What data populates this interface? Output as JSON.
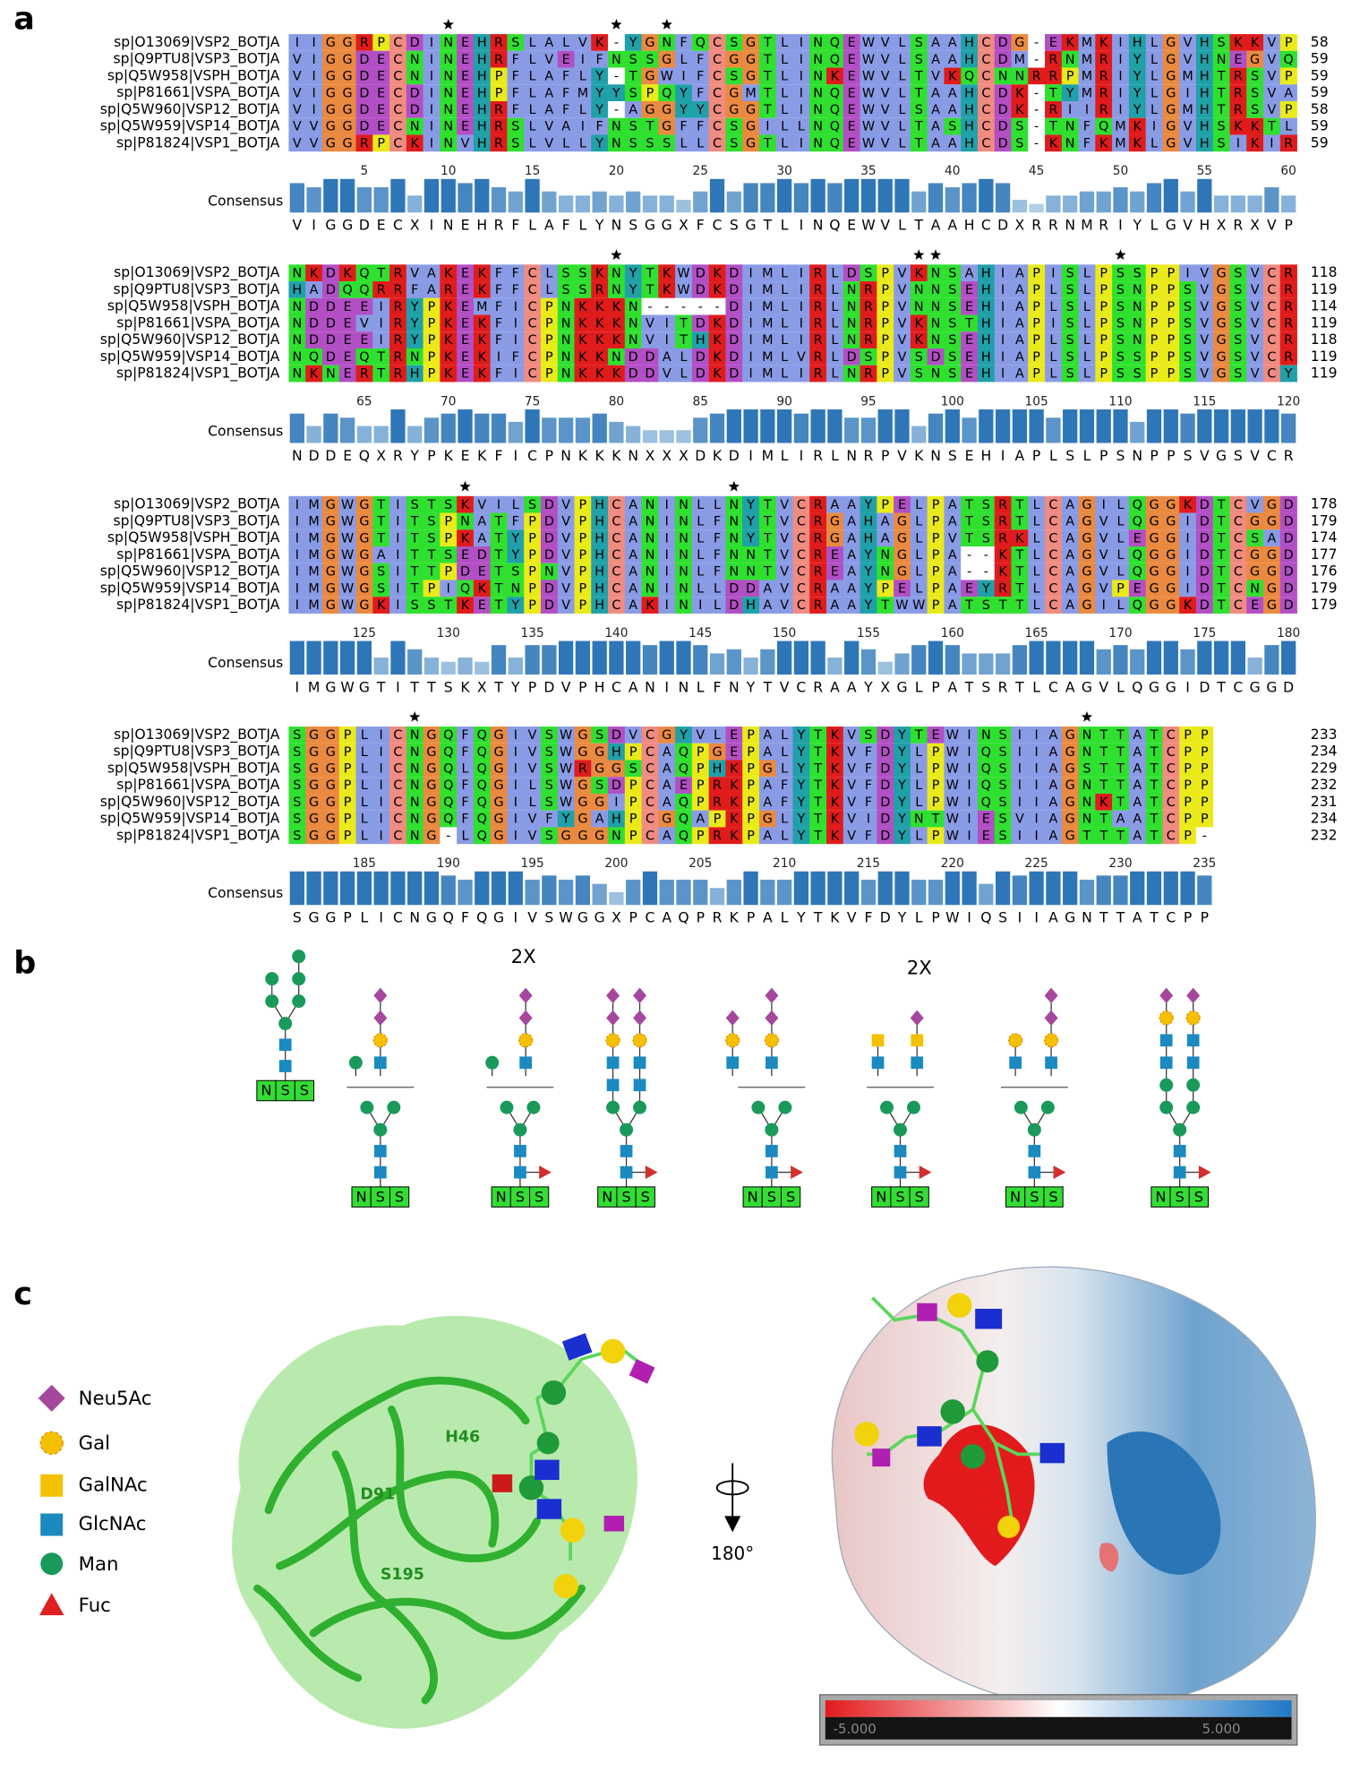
{
  "panel_labels": [
    "a",
    "b",
    "c"
  ],
  "alignment": {
    "names": [
      "sp|O13069|VSP2_BOTJA",
      "sp|Q9PTU8|VSP3_BOTJA",
      "sp|Q5W958|VSPH_BOTJA",
      "sp|P81661|VSPA_BOTJA",
      "sp|Q5W960|VSP12_BOTJA",
      "sp|Q5W959|VSP14_BOTJA",
      "sp|P81824|VSP1_BOTJA"
    ],
    "consensus_label": "Consensus",
    "blocks": [
      {
        "sequences": [
          "IIGGRPCDINEHRSLALVK-YGNFQCSGTLINQEWVLSAAHCDG-EKMKIHLGVHSKKVP",
          "VIGGDECNINEHRFLVEIFNSSGLFCGGTLINQEWVLSAAHCDM-RNMRIYLGVHNEGVQ",
          "VIGGDECNINEHPFLAFLY-TGWIFCSGTLINKEWVLTVKQCNNRRPMRIYLGMHTRSVP",
          "VIGGDECDINEHPFLAFMYYSPQYFCGMTLINQEWVLTAAHCDK-TYMRIYLGIHTRSVA",
          "VIGGDECDINEHRFLAFLY-AGGYYCGGTLINQEWVLSAAHCDK-RIIRIYLGMHTRSVP",
          "VVGGDECNINEHRSLVAIFNSTGFFCSGILLNQEWVLTASHCDS-TNFQMKIGVHSKKTL",
          "VVGGRPCKINVHRSLVLLYNSSSLLCSGTLINQEWVLTAAHCDS-KNFKMKLGVHSIKIR"
        ],
        "end_numbers": [
          58,
          59,
          59,
          59,
          58,
          59,
          59
        ],
        "ruler": [
          5,
          10,
          15,
          20,
          25,
          30,
          35,
          40,
          45,
          50,
          55,
          60
        ],
        "stars": [
          10,
          20,
          23
        ],
        "consensus": "VIGGDECXINEHRFLAFLYNSGGXFCSGTLINQEWVLTAAHCDXRRNMRIYLGVHXRXVP"
      },
      {
        "sequences": [
          "NKDKQTRVAKEKFFCLSSKNYTKWDKDIMLIRLDSPVKNSAHIAPISLPSSPPIVGSVCR",
          "HADQQRRFAREKFFCLSSRNYTKWDKDIMLIRLNRPVNNSEHIAPLSLPSNPPSVGSVCR",
          "NDDEEIRYPKEMFICPNKKKN-----DIMLIRLNRPVNNSEHIAPLSLPSNPPSVGSVCR",
          "NDDEVIRYPKEKFICPNKKKNVITDKDIMLIRLNRPVKNSTHIAPISLPSNPPSVGSVCR",
          "NDDEEIRYPKEKFICPNKKKNVITHKDIMLIRLNRPVKNSEHIAPLSLPSNPPSVGSVCR",
          "NQDEQTRNPKEKIFCPNKKNDDALDKDIMLVRLDSPVSDSEHIAPLSLPSSPPSVGSVCR",
          "NKNERTRHPKEKFICPNKKKDDVLDKDIMLIRLNRPVSNSEHIAPLSLPSSPPSVGSVCY"
        ],
        "end_numbers": [
          118,
          119,
          114,
          119,
          118,
          119,
          119
        ],
        "ruler": [
          65,
          70,
          75,
          80,
          85,
          90,
          95,
          100,
          105,
          110,
          115,
          120
        ],
        "stars": [
          80,
          98,
          99,
          110
        ],
        "consensus": "NDDEQXRYPKEKFICPNKKKNXXXDKDIMLIRLNRPVKNSEHIAPLSLPSNPPSVGSVCR"
      },
      {
        "sequences": [
          "IMGWGTISTSKVILSDVPHCANINLLNYTVCRAAYPELPATSRTLCAGILQGGKDTCVGD",
          "IMGWGTITSPNATFPDVPHCANINLFNYTVCRGAHAGLPATSRTLCAGVLQGGIDTCGGD",
          "IMGWGTITSPKATYPDVPHCANINLFNYTVCRGAHAGLPVTSRKLCAGVLEGGIDTCSAD",
          "IMGWGAITTSEDTYPDVPHCANINLFNNTVCREAYNGLPA--KTLCAGVLQGGIDTCGGD",
          "IMGWGSITTPDETSPNVPHCANINLFNNTVCREAYNGLPA--KTLCAGVLQGGIDTCGGD",
          "IMGWGSITPIQKTNPDVPHCANINLLDDAVCRAAYPELPAEYRTLCAGVPEGGIDTCNGD",
          "IMGWGKISSTKETYPDVPHCAKINILDHAVCRAAYTWWPATSTTLCAGILQGGKDTCEGD"
        ],
        "end_numbers": [
          178,
          179,
          174,
          177,
          176,
          179,
          179
        ],
        "ruler": [
          125,
          130,
          135,
          140,
          145,
          150,
          155,
          160,
          165,
          170,
          175,
          180
        ],
        "stars": [
          131,
          147
        ],
        "consensus": "IMGWGTITTSKXTYPDVPHCANINLFNYTVCRAAYXGLPATSRTLCAGVLQGGIDTCGGD"
      },
      {
        "sequences": [
          "SGGPLICNGQFQGIVSWGSDVCGYVLEPALYTKVSDYTEWINSIIAGNTTATCPP",
          "SGGPLICNGQFQGIVSWGGHPCAQPGEPALYTKVFDYLPWIQSIIAGNTTATCPP",
          "SGGPLICNGQLQGIVSWRGGSCAQPHKPGLYTKVFDYLPWIQSIIAGSTTATCPP",
          "SGGPLICNGQFQGILSWGSDPCAEPRKPAFYTKVFDYLPWIQSIIAGNTTATCPP",
          "SGGPLICNGQFQGILSWGGIPCAQPRKPAFYTKVFDYLPWIQSIIAGNKTATCPP",
          "SGGPLICNGQFQGIVFYGAHPCGQAPKPGLYTKVIDYNTWIESVIAGNTAATCPP",
          "SGGPLICNG-LQGIVSGGGNPCAQPRKPALYTKVFDYLPWIESIIAGTTTATCP-"
        ],
        "end_numbers": [
          233,
          234,
          229,
          232,
          231,
          234,
          232
        ],
        "ruler": [
          185,
          190,
          195,
          200,
          205,
          210,
          215,
          220,
          225,
          230,
          235
        ],
        "stars": [
          188,
          228
        ],
        "consensus": "SGGPLICNGQFQGIVSWGGXPCAQPRKPALYTKVFDYLPWIQSIIAGNTTATCPP"
      }
    ]
  },
  "glycans": {
    "sites": [
      "NSS",
      "NSS",
      "NSS",
      "NSS",
      "NSS",
      "NSS",
      "NSS",
      "NSS"
    ],
    "multipliers": [
      "2X",
      "2X"
    ]
  },
  "structure": {
    "legend": [
      "Neu5Ac",
      "Gal",
      "GalNAc",
      "GlcNAc",
      "Man",
      "Fuc"
    ],
    "residue_labels": [
      "H46",
      "D91",
      "S195"
    ],
    "rotation_label": "180°",
    "colorbar": {
      "min_label": "-5.000",
      "max_label": "5.000"
    }
  }
}
